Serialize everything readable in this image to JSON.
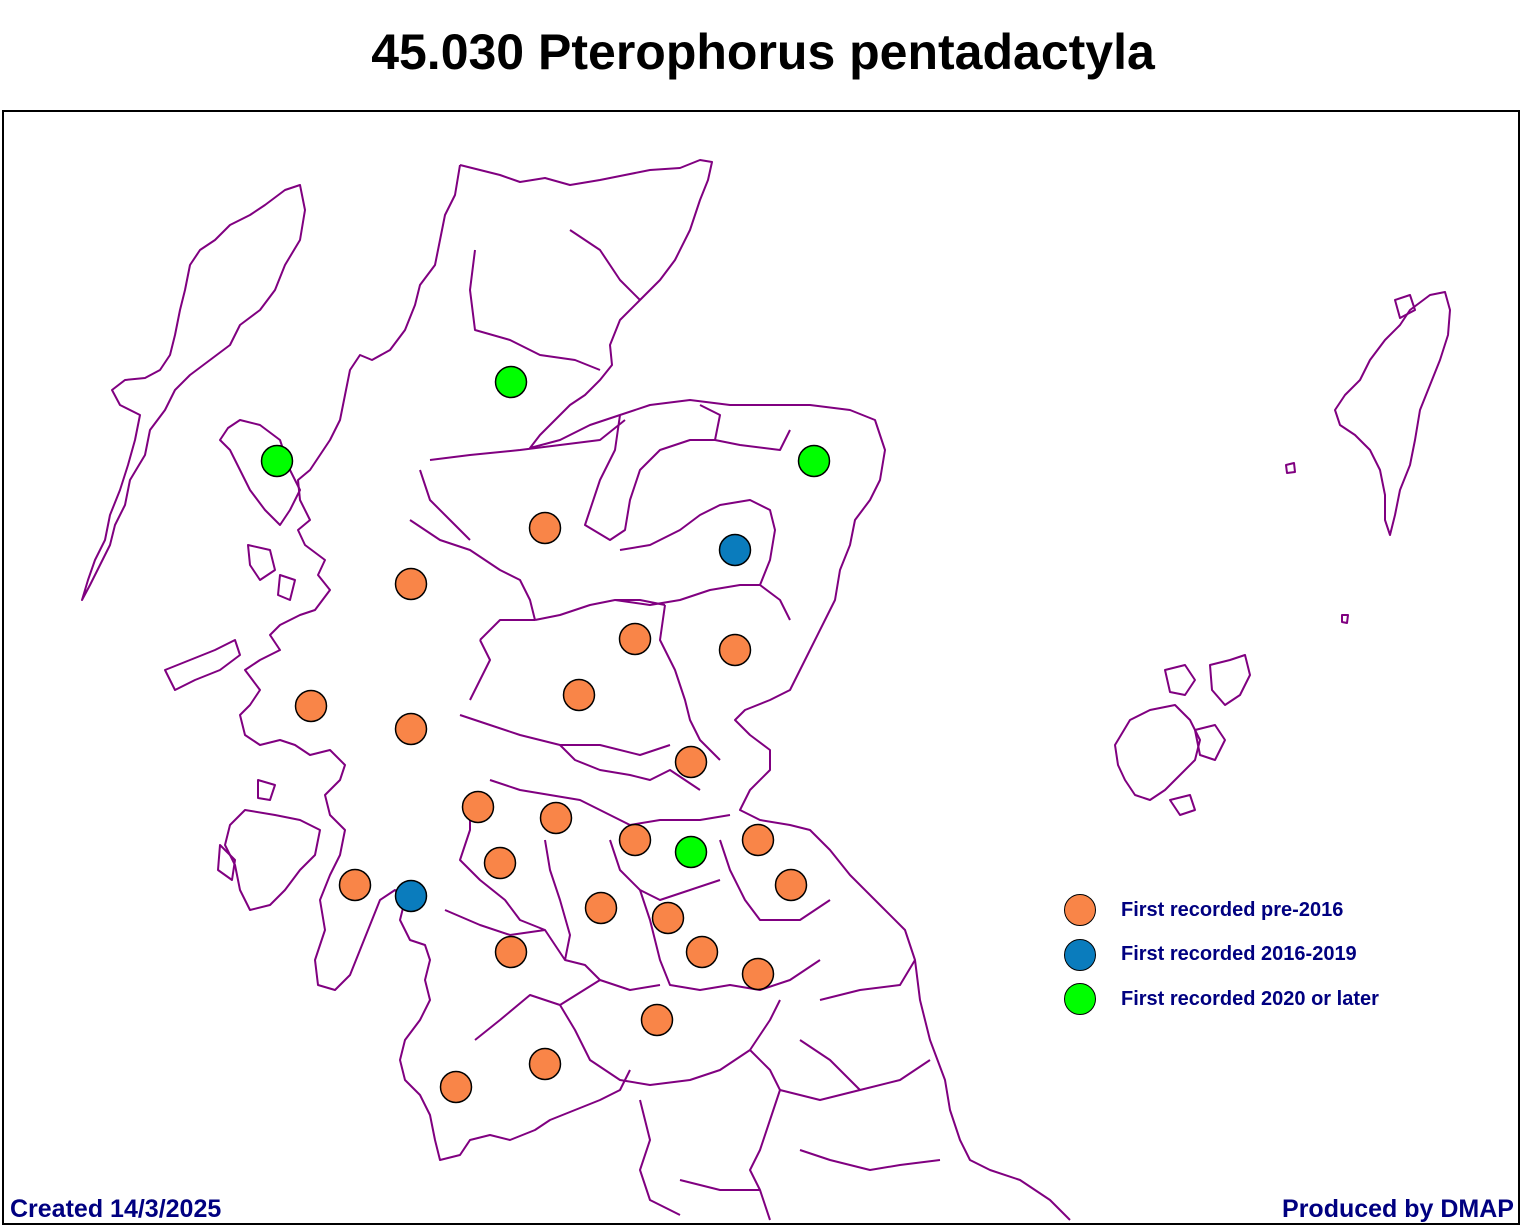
{
  "title": "45.030 Pterophorus pentadactyla",
  "colors": {
    "boundary": "#800080",
    "pre_2016": "#f98548",
    "period_2016_2019": "#0a7cbd",
    "from_2020": "#00ff00",
    "footer_text": "#000080"
  },
  "legend": [
    {
      "label": "First recorded pre-2016",
      "color": "#f98548"
    },
    {
      "label": "First recorded 2016-2019",
      "color": "#0a7cbd"
    },
    {
      "label": "First recorded 2020 or later",
      "color": "#00ff00"
    }
  ],
  "footer": {
    "created": "Created 14/3/2025",
    "producer": "Produced by DMAP"
  }
}
